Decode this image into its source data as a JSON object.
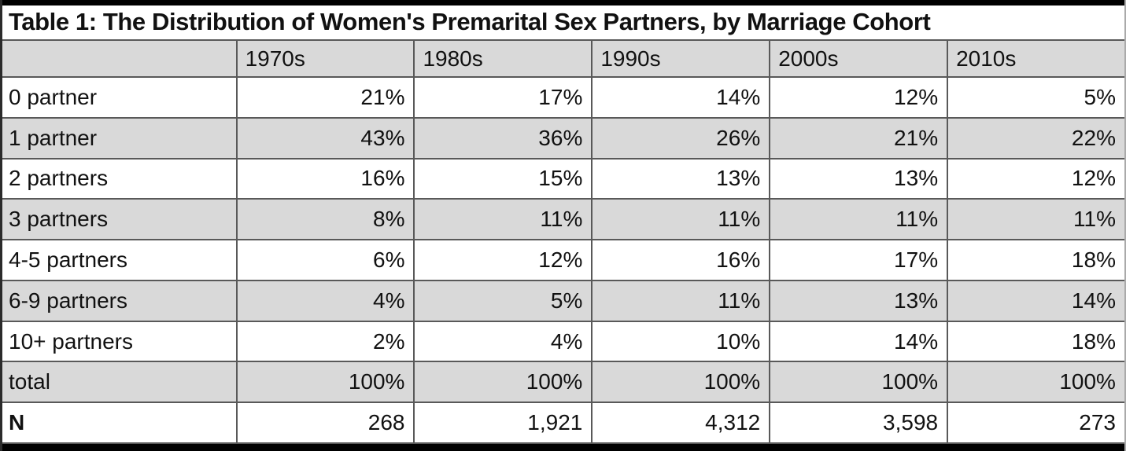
{
  "title": "Table 1: The Distribution of Women's Premarital Sex Partners, by Marriage Cohort",
  "chart_data": {
    "type": "table",
    "title": "Table 1: The Distribution of Women's Premarital Sex Partners, by Marriage Cohort",
    "columns": [
      "",
      "1970s",
      "1980s",
      "1990s",
      "2000s",
      "2010s"
    ],
    "rows": [
      {
        "label": "0 partner",
        "values": [
          "21%",
          "17%",
          "14%",
          "12%",
          "5%"
        ]
      },
      {
        "label": "1 partner",
        "values": [
          "43%",
          "36%",
          "26%",
          "21%",
          "22%"
        ]
      },
      {
        "label": "2 partners",
        "values": [
          "16%",
          "15%",
          "13%",
          "13%",
          "12%"
        ]
      },
      {
        "label": "3 partners",
        "values": [
          "8%",
          "11%",
          "11%",
          "11%",
          "11%"
        ]
      },
      {
        "label": "4-5 partners",
        "values": [
          "6%",
          "12%",
          "16%",
          "17%",
          "18%"
        ]
      },
      {
        "label": "6-9 partners",
        "values": [
          "4%",
          "5%",
          "11%",
          "13%",
          "14%"
        ]
      },
      {
        "label": "10+ partners",
        "values": [
          "2%",
          "4%",
          "10%",
          "14%",
          "18%"
        ]
      },
      {
        "label": "total",
        "values": [
          "100%",
          "100%",
          "100%",
          "100%",
          "100%"
        ]
      },
      {
        "label": "N",
        "values": [
          "268",
          "1,921",
          "4,312",
          "3,598",
          "273"
        ]
      }
    ],
    "layout": {
      "row_shading": "alternating",
      "shaded_rows": [
        "header",
        "1 partner",
        "3 partners",
        "6-9 partners",
        "total"
      ],
      "value_alignment": "right",
      "label_alignment": "left"
    }
  },
  "colors": {
    "shade_gray": "#d9d9d9",
    "grid_line": "#595959",
    "outer_bar": "#000000",
    "background": "#ffffff",
    "text": "#111111"
  }
}
